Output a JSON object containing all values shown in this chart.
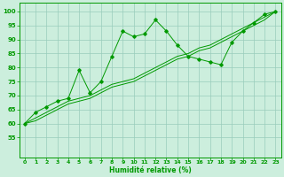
{
  "xlabel": "Humidité relative (%)",
  "background_color": "#cceedd",
  "grid_color": "#99ccbb",
  "line_color": "#009900",
  "xlim": [
    -0.5,
    23.5
  ],
  "ylim": [
    48,
    103
  ],
  "xticks": [
    0,
    1,
    2,
    3,
    4,
    5,
    6,
    7,
    8,
    9,
    10,
    11,
    12,
    13,
    14,
    15,
    16,
    17,
    18,
    19,
    20,
    21,
    22,
    23
  ],
  "yticks": [
    55,
    60,
    65,
    70,
    75,
    80,
    85,
    90,
    95,
    100
  ],
  "series1_x": [
    0,
    1,
    2,
    3,
    4,
    5,
    6,
    7,
    8,
    9,
    10,
    11,
    12,
    13,
    14,
    15,
    16,
    17,
    18,
    19,
    20,
    21,
    22,
    23
  ],
  "series1_y": [
    60,
    64,
    66,
    68,
    69,
    79,
    71,
    75,
    84,
    93,
    91,
    92,
    97,
    93,
    88,
    84,
    83,
    82,
    81,
    89,
    93,
    96,
    99,
    100
  ],
  "series2_x": [
    0,
    1,
    2,
    3,
    4,
    5,
    6,
    7,
    8,
    9,
    10,
    11,
    12,
    13,
    14,
    15,
    16,
    17,
    18,
    19,
    20,
    21,
    22,
    23
  ],
  "series2_y": [
    60,
    62,
    64,
    66,
    68,
    69,
    70,
    72,
    74,
    75,
    76,
    78,
    80,
    82,
    84,
    85,
    87,
    88,
    90,
    92,
    94,
    96,
    98,
    100
  ],
  "series3_x": [
    0,
    1,
    2,
    3,
    4,
    5,
    6,
    7,
    8,
    9,
    10,
    11,
    12,
    13,
    14,
    15,
    16,
    17,
    18,
    19,
    20,
    21,
    22,
    23
  ],
  "series3_y": [
    60,
    61,
    63,
    65,
    67,
    68,
    69,
    71,
    73,
    74,
    75,
    77,
    79,
    81,
    83,
    84,
    86,
    87,
    89,
    91,
    93,
    95,
    97,
    100
  ]
}
